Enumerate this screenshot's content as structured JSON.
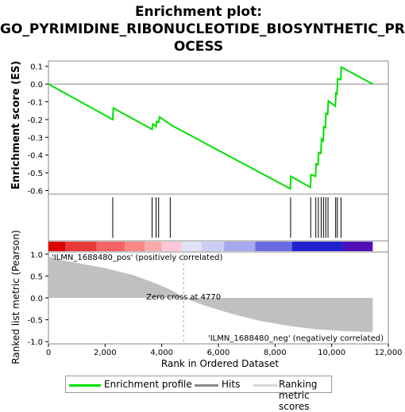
{
  "title": {
    "line1": "Enrichment plot:",
    "line2": "GO_PYRIMIDINE_RIBONUCLEOTIDE_BIOSYNTHETIC_PR",
    "line3": "OCESS"
  },
  "colors": {
    "enrichment_line": "#00e000",
    "hits": "#000000",
    "metric_fill": "#c0c0c0",
    "pos_label": "#ff3030",
    "neg_label": "#3333cc",
    "zero_line": "#888888"
  },
  "chart_data": {
    "type": "line",
    "x_axis": {
      "label": "Rank in Ordered Dataset",
      "range": [
        0,
        12000
      ],
      "ticks": [
        0,
        2000,
        4000,
        6000,
        8000,
        10000,
        12000
      ],
      "tick_labels": [
        "0",
        "2,000",
        "4,000",
        "6,000",
        "8,000",
        "10,000",
        "12,000"
      ]
    },
    "es_panel": {
      "ylabel": "Enrichment score (ES)",
      "ylim": [
        -0.62,
        0.13
      ],
      "yticks": [
        0.1,
        0.0,
        -0.1,
        -0.2,
        -0.3,
        -0.4,
        -0.5,
        -0.6
      ],
      "ytick_labels": [
        "0.1",
        "0.0",
        "-0.1",
        "-0.2",
        "-0.3",
        "-0.4",
        "-0.5",
        "-0.6"
      ],
      "series": [
        {
          "x": [
            0,
            2270,
            2290,
            3660,
            3690,
            3800,
            3820,
            3890,
            3920,
            4280,
            4320,
            8540,
            8560,
            9250,
            9270,
            9430,
            9450,
            9520,
            9540,
            9620,
            9640,
            9700,
            9720,
            9780,
            9800,
            9860,
            9880,
            10130,
            10150,
            10190,
            10210,
            10320,
            10340,
            11450
          ],
          "y": [
            0.0,
            -0.2,
            -0.135,
            -0.255,
            -0.225,
            -0.24,
            -0.21,
            -0.215,
            -0.185,
            -0.225,
            -0.23,
            -0.59,
            -0.52,
            -0.582,
            -0.51,
            -0.52,
            -0.45,
            -0.455,
            -0.385,
            -0.39,
            -0.31,
            -0.32,
            -0.24,
            -0.245,
            -0.165,
            -0.17,
            -0.095,
            -0.125,
            -0.05,
            -0.055,
            0.03,
            0.025,
            0.095,
            0.0
          ]
        }
      ]
    },
    "hits": [
      2270,
      3660,
      3800,
      3890,
      4300,
      8550,
      9260,
      9440,
      9530,
      9630,
      9710,
      9790,
      9870,
      10140,
      10200,
      10330
    ],
    "metric_panel": {
      "ylabel": "Ranked list metric (Pearson)",
      "ylim": [
        -1.05,
        1.05
      ],
      "yticks": [
        1.0,
        0.5,
        0.0,
        -0.5,
        -1.0
      ],
      "ytick_labels": [
        "1.0",
        "0.5",
        "0.0",
        "-0.5",
        "-1.0"
      ],
      "curve_x": [
        0,
        300,
        1000,
        2000,
        3000,
        3800,
        4400,
        4770,
        5500,
        6500,
        7500,
        8500,
        9500,
        10500,
        11450
      ],
      "curve_y": [
        0.95,
        0.88,
        0.8,
        0.68,
        0.52,
        0.33,
        0.16,
        0.0,
        -0.17,
        -0.37,
        -0.53,
        -0.64,
        -0.72,
        -0.76,
        -0.78
      ],
      "pos_label": "'ILMN_1688480_pos' (positively correlated)",
      "neg_label": "'ILMN_1688480_neg' (negatively correlated)",
      "zero_cross_label": "Zero cross at 4770",
      "zero_cross": 4770
    },
    "color_bar": {
      "segments": [
        {
          "start": 0,
          "end": 600,
          "color": "#dd0000"
        },
        {
          "start": 600,
          "end": 1700,
          "color": "#e83a3a"
        },
        {
          "start": 1700,
          "end": 2700,
          "color": "#f46464"
        },
        {
          "start": 2700,
          "end": 3400,
          "color": "#f88888"
        },
        {
          "start": 3400,
          "end": 4000,
          "color": "#fbaaaa"
        },
        {
          "start": 4000,
          "end": 4700,
          "color": "#fcc8d8"
        },
        {
          "start": 4700,
          "end": 5400,
          "color": "#e2e2f8"
        },
        {
          "start": 5400,
          "end": 6200,
          "color": "#cccdf5"
        },
        {
          "start": 6200,
          "end": 7300,
          "color": "#a7a8ee"
        },
        {
          "start": 7300,
          "end": 8600,
          "color": "#6a6ae2"
        },
        {
          "start": 8600,
          "end": 10400,
          "color": "#2222cc"
        },
        {
          "start": 10400,
          "end": 11450,
          "color": "#5010b8"
        }
      ]
    },
    "legend": [
      {
        "label": "Enrichment profile",
        "color": "#00e000"
      },
      {
        "label": "Hits",
        "color": "#888888"
      },
      {
        "label": "Ranking metric scores",
        "color": "#d8d8d8"
      }
    ]
  }
}
